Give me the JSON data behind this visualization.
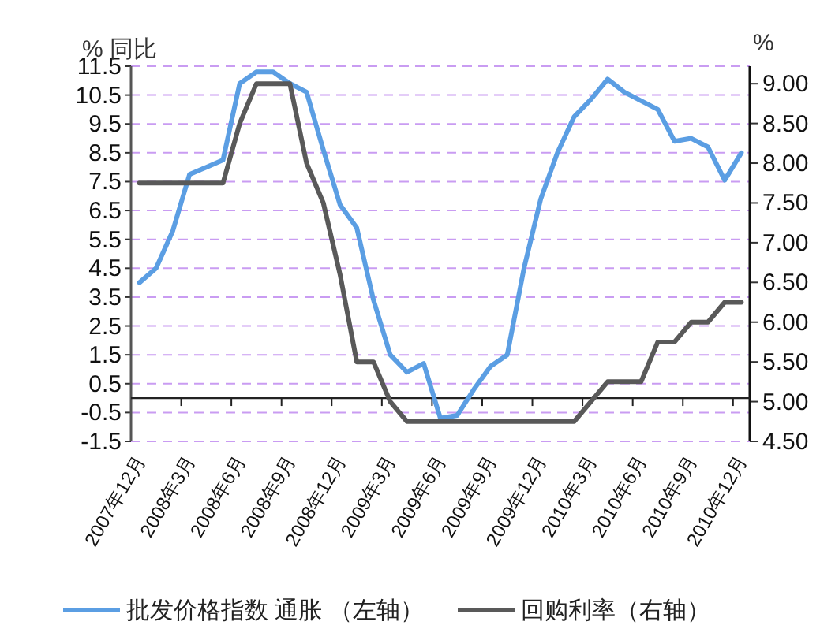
{
  "chart_data": {
    "type": "line",
    "ylabel": "% 同比",
    "y2label": "%",
    "categories": [
      "2007年12月",
      null,
      null,
      "2008年3月",
      null,
      null,
      "2008年6月",
      null,
      null,
      "2008年9月",
      null,
      null,
      "2008年12月",
      null,
      null,
      "2009年3月",
      null,
      null,
      "2009年6月",
      null,
      null,
      "2009年9月",
      null,
      null,
      "2009年12月",
      null,
      null,
      "2010年3月",
      null,
      null,
      "2010年6月",
      null,
      null,
      "2010年9月",
      null,
      null,
      "2010年12月"
    ],
    "series": [
      {
        "name": "批发价格指数  通胀 （左轴）",
        "color": "#5b9ee3",
        "values": [
          4.0,
          4.5,
          5.8,
          7.75,
          8.0,
          8.25,
          10.9,
          11.3,
          11.3,
          10.9,
          10.6,
          8.6,
          6.7,
          5.9,
          3.4,
          1.5,
          0.9,
          1.2,
          -0.7,
          -0.6,
          0.3,
          1.1,
          1.5,
          4.5,
          6.9,
          8.5,
          9.75,
          10.35,
          11.05,
          10.6,
          10.3,
          10.0,
          8.9,
          9.0,
          8.7,
          7.55,
          8.5
        ]
      },
      {
        "name": "回购利率（右轴）",
        "color": "#595959",
        "axis": "y2",
        "values": [
          7.75,
          7.75,
          7.75,
          7.75,
          7.75,
          7.75,
          8.5,
          9.0,
          9.0,
          9.0,
          8.0,
          7.5,
          6.6,
          5.5,
          5.5,
          5.0,
          4.75,
          4.75,
          4.75,
          4.75,
          4.75,
          4.75,
          4.75,
          4.75,
          4.75,
          4.75,
          4.75,
          5.0,
          5.25,
          5.25,
          5.25,
          5.75,
          5.75,
          6.0,
          6.0,
          6.25,
          6.25
        ]
      }
    ],
    "ylim": [
      -1.5,
      11.5
    ],
    "yticks": [
      -1.5,
      -0.5,
      0.5,
      1.5,
      2.5,
      3.5,
      4.5,
      5.5,
      6.5,
      7.5,
      8.5,
      9.5,
      10.5,
      11.5
    ],
    "y2lim": [
      4.5,
      9.22
    ],
    "y2ticks": [
      {
        "value": 4.5,
        "label": "4.50"
      },
      {
        "value": 5,
        "label": "5.00"
      },
      {
        "value": 5.5,
        "label": "5.50"
      },
      {
        "value": 6,
        "label": "6.00"
      },
      {
        "value": 6.5,
        "label": "6.50"
      },
      {
        "value": 7,
        "label": "7.00"
      },
      {
        "value": 7.5,
        "label": "7.50"
      },
      {
        "value": 8,
        "label": "8.00"
      },
      {
        "value": 8.5,
        "label": "8.50"
      },
      {
        "value": 9,
        "label": "9.00"
      }
    ],
    "grid": "y",
    "legend": "bottom"
  }
}
